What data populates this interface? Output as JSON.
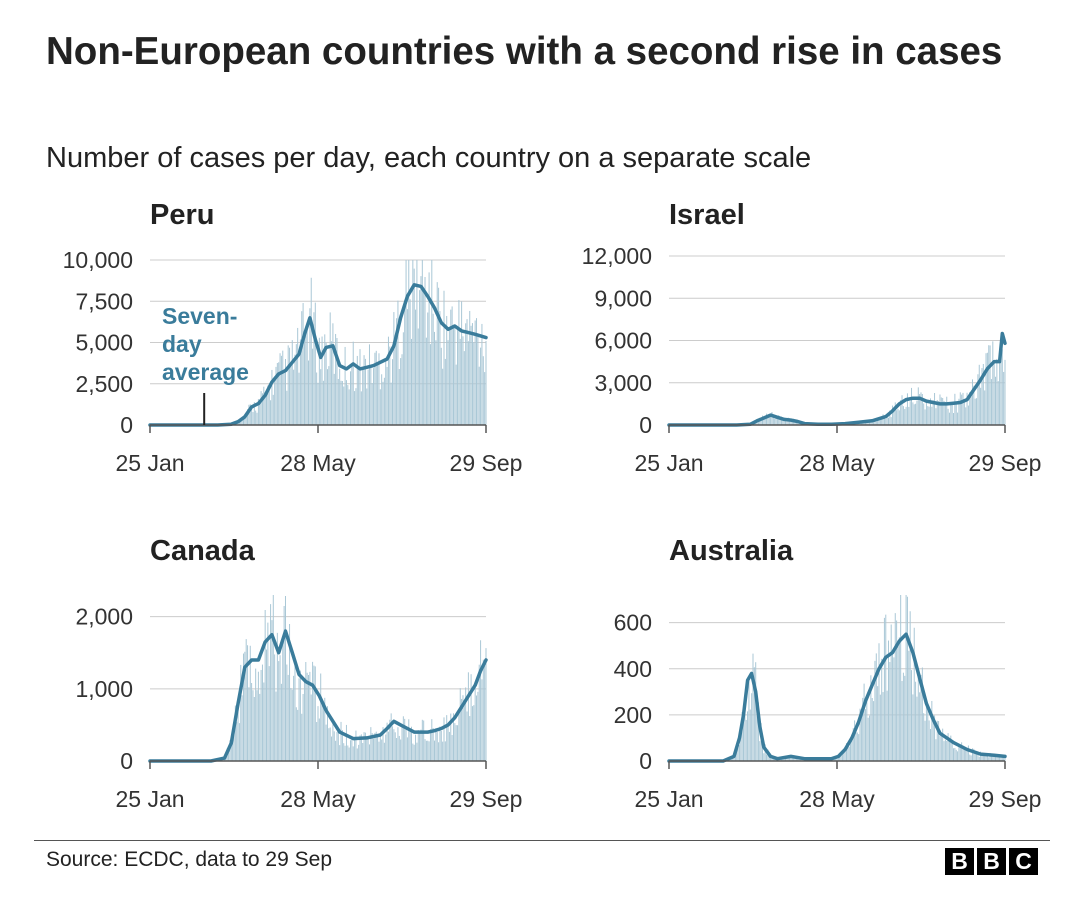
{
  "title": "Non-European countries with a second rise in cases",
  "subtitle": "Number of cases per day, each country on a separate scale",
  "source": "Source: ECDC, data to 29 Sep",
  "logo": {
    "letters": [
      "B",
      "B",
      "C"
    ]
  },
  "colors": {
    "line": "#3a7c9b",
    "bars": "#a9c7d6",
    "grid": "#cccccc",
    "axis": "#555555",
    "annotation": "#3a7c9b"
  },
  "chart_data": [
    {
      "type": "line",
      "title": "Peru",
      "x_ticks": [
        "25 Jan",
        "28 May",
        "29 Sep"
      ],
      "x_range_days": [
        0,
        248
      ],
      "y_ticks": [
        0,
        2500,
        5000,
        7500,
        10000
      ],
      "y_tick_labels": [
        "0",
        "2,500",
        "5,000",
        "7,500",
        "10,000"
      ],
      "ylim": [
        0,
        10000
      ],
      "annotation": {
        "text": [
          "Seven-",
          "day",
          "average"
        ],
        "day": 40
      },
      "series": [
        {
          "name": "Seven-day average",
          "day": [
            0,
            50,
            60,
            65,
            70,
            75,
            80,
            85,
            90,
            95,
            100,
            105,
            110,
            114,
            118,
            122,
            126,
            130,
            135,
            140,
            145,
            150,
            155,
            160,
            165,
            170,
            175,
            180,
            185,
            190,
            195,
            200,
            205,
            210,
            215,
            220,
            225,
            230,
            235,
            240,
            248
          ],
          "value": [
            0,
            0,
            50,
            200,
            500,
            1100,
            1300,
            1800,
            2600,
            3100,
            3300,
            3800,
            4300,
            5500,
            6500,
            5200,
            4100,
            4700,
            4800,
            3600,
            3400,
            3700,
            3400,
            3500,
            3600,
            3800,
            4000,
            4800,
            6500,
            7800,
            8500,
            8400,
            7800,
            7100,
            6200,
            5800,
            6000,
            5700,
            5600,
            5500,
            5300
          ]
        }
      ]
    },
    {
      "type": "line",
      "title": "Israel",
      "x_ticks": [
        "25 Jan",
        "28 May",
        "29 Sep"
      ],
      "x_range_days": [
        0,
        248
      ],
      "y_ticks": [
        0,
        3000,
        6000,
        9000,
        12000
      ],
      "y_tick_labels": [
        "0",
        "3,000",
        "6,000",
        "9,000",
        "12,000"
      ],
      "ylim": [
        0,
        12000
      ],
      "series": [
        {
          "name": "Seven-day average",
          "day": [
            0,
            50,
            60,
            65,
            70,
            75,
            80,
            85,
            90,
            95,
            100,
            110,
            120,
            130,
            140,
            150,
            160,
            165,
            170,
            175,
            180,
            185,
            190,
            195,
            200,
            205,
            210,
            215,
            220,
            225,
            230,
            235,
            240,
            244,
            246,
            248
          ],
          "value": [
            0,
            0,
            50,
            300,
            500,
            700,
            550,
            400,
            350,
            250,
            100,
            50,
            50,
            100,
            200,
            300,
            600,
            1000,
            1500,
            1800,
            1900,
            1900,
            1700,
            1600,
            1500,
            1500,
            1550,
            1600,
            1800,
            2500,
            3200,
            4000,
            4500,
            4500,
            6500,
            5800
          ]
        }
      ]
    },
    {
      "type": "line",
      "title": "Canada",
      "x_ticks": [
        "25 Jan",
        "28 May",
        "29 Sep"
      ],
      "x_range_days": [
        0,
        248
      ],
      "y_ticks": [
        0,
        1000,
        2000
      ],
      "y_tick_labels": [
        "0",
        "1,000",
        "2,000"
      ],
      "ylim": [
        0,
        2300
      ],
      "series": [
        {
          "name": "Seven-day average",
          "day": [
            0,
            45,
            55,
            60,
            65,
            70,
            75,
            80,
            85,
            90,
            95,
            100,
            105,
            110,
            115,
            120,
            125,
            130,
            140,
            150,
            160,
            170,
            175,
            180,
            185,
            190,
            195,
            200,
            205,
            210,
            215,
            220,
            225,
            230,
            235,
            240,
            244,
            248
          ],
          "value": [
            0,
            0,
            40,
            250,
            800,
            1300,
            1400,
            1400,
            1650,
            1750,
            1500,
            1800,
            1500,
            1200,
            1100,
            1050,
            900,
            700,
            400,
            310,
            320,
            360,
            450,
            550,
            500,
            450,
            400,
            400,
            400,
            420,
            450,
            500,
            600,
            750,
            900,
            1050,
            1250,
            1400
          ]
        }
      ]
    },
    {
      "type": "line",
      "title": "Australia",
      "x_ticks": [
        "25 Jan",
        "28 May",
        "29 Sep"
      ],
      "x_range_days": [
        0,
        248
      ],
      "y_ticks": [
        0,
        200,
        400,
        600
      ],
      "y_tick_labels": [
        "0",
        "200",
        "400",
        "600"
      ],
      "ylim": [
        0,
        720
      ],
      "series": [
        {
          "name": "Seven-day average",
          "day": [
            0,
            40,
            48,
            52,
            55,
            58,
            61,
            64,
            67,
            70,
            75,
            80,
            90,
            100,
            110,
            120,
            125,
            130,
            135,
            140,
            145,
            150,
            155,
            160,
            165,
            170,
            175,
            180,
            185,
            190,
            195,
            200,
            210,
            220,
            230,
            240,
            248
          ],
          "value": [
            0,
            0,
            20,
            100,
            200,
            350,
            380,
            300,
            150,
            60,
            20,
            10,
            20,
            10,
            10,
            10,
            20,
            50,
            100,
            170,
            260,
            330,
            400,
            450,
            470,
            520,
            550,
            470,
            360,
            250,
            180,
            120,
            80,
            50,
            30,
            25,
            20
          ]
        }
      ]
    }
  ]
}
